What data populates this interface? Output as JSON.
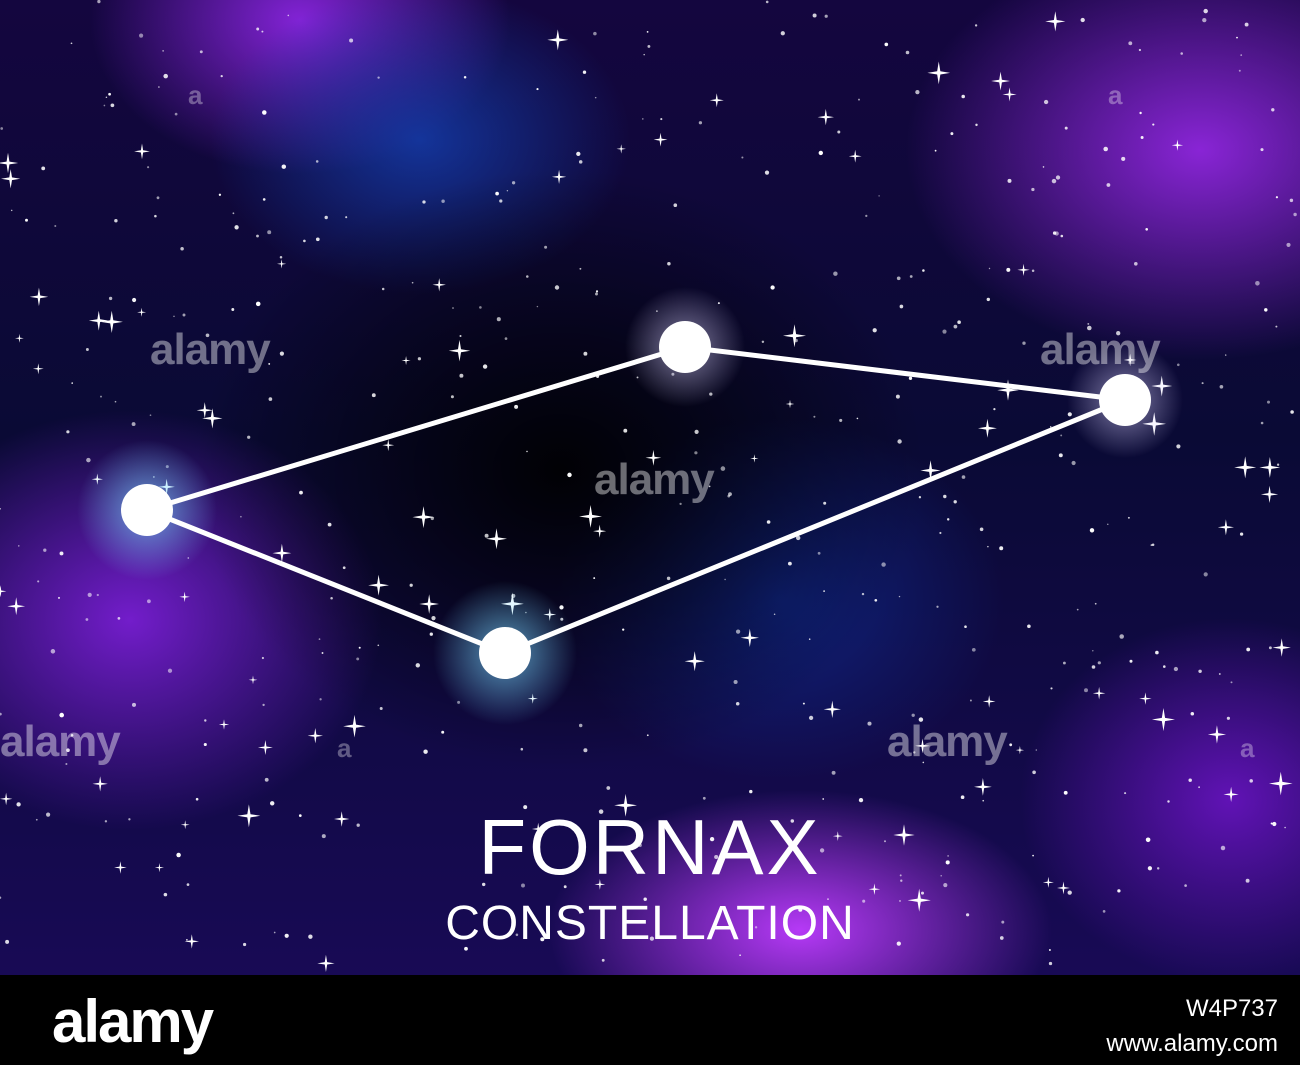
{
  "title": "FORNAX",
  "subtitle": "CONSTELLATION",
  "watermark": "alamy",
  "footer": {
    "brand": "alamy",
    "image_id_line1": "W4P737",
    "image_id_line2": "www.alamy.com"
  },
  "colors": {
    "sky_dark": "#0a0a35",
    "nebula_purple": "#9628e6",
    "nebula_blue": "#143caa",
    "star_white": "#ffffff",
    "glow_cyan": "#7ad8ff"
  }
}
